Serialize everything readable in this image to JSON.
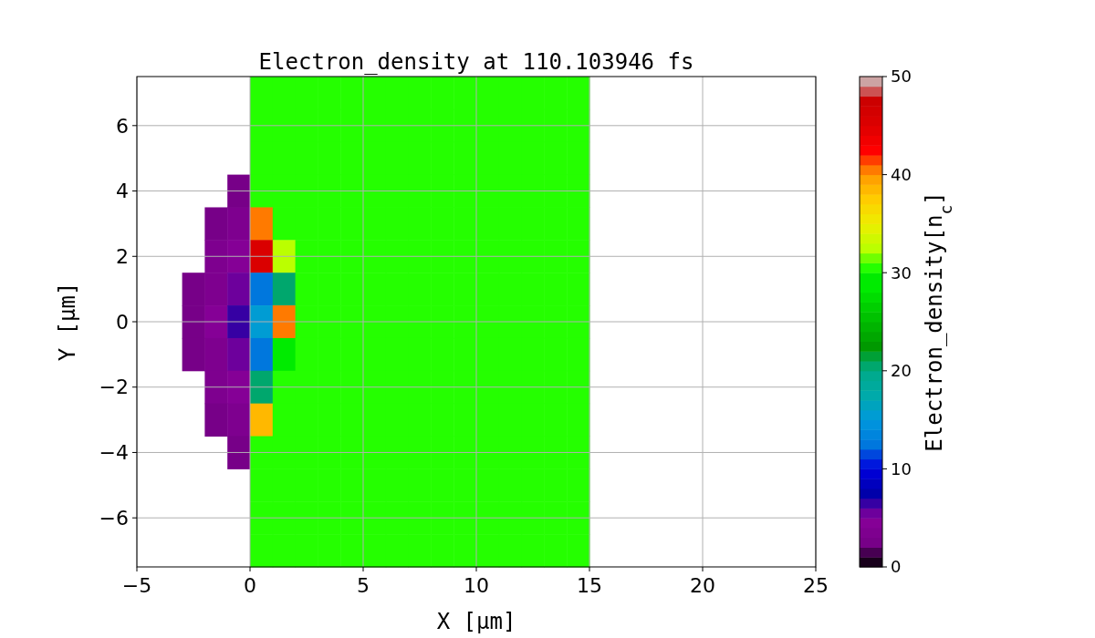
{
  "chart_data": {
    "type": "scatter",
    "title": "Electron_density at 110.103946 fs",
    "xlabel": "X [μm]",
    "ylabel": "Y [μm]",
    "clabel": "Electron_density[n$_{c}$]",
    "marker": "square",
    "series": [
      {
        "x": [
          0.5,
          1.5,
          2.5,
          3.5,
          4.5,
          5.5,
          6.5,
          7.5,
          8.5,
          9.5,
          10.5,
          11.5,
          12.5,
          13.5,
          14.5,
          0.5,
          1.5,
          2.5,
          3.5,
          4.5,
          5.5,
          6.5,
          7.5,
          8.5,
          9.5,
          10.5,
          11.5,
          12.5,
          13.5,
          14.5,
          0.5,
          1.5,
          2.5,
          3.5,
          4.5,
          5.5,
          6.5,
          7.5,
          8.5,
          9.5,
          10.5,
          11.5,
          12.5,
          13.5,
          14.5,
          -0.5,
          0.5,
          1.5,
          2.5,
          3.5,
          4.5,
          5.5,
          6.5,
          7.5,
          8.5,
          9.5,
          10.5,
          11.5,
          12.5,
          13.5,
          14.5,
          -1.5,
          -0.5,
          0.5,
          1.5,
          2.5,
          3.5,
          4.5,
          5.5,
          6.5,
          7.5,
          8.5,
          9.5,
          10.5,
          11.5,
          12.5,
          13.5,
          14.5,
          -1.5,
          -0.5,
          0.5,
          1.5,
          2.5,
          3.5,
          4.5,
          5.5,
          6.5,
          7.5,
          8.5,
          9.5,
          10.5,
          11.5,
          12.5,
          13.5,
          14.5,
          -2.5,
          -1.5,
          -0.5,
          0.5,
          1.5,
          2.5,
          3.5,
          4.5,
          5.5,
          6.5,
          7.5,
          8.5,
          9.5,
          10.5,
          11.5,
          12.5,
          13.5,
          14.5,
          -2.5,
          -1.5,
          -0.5,
          0.5,
          1.5,
          2.5,
          3.5,
          4.5,
          5.5,
          6.5,
          7.5,
          8.5,
          9.5,
          10.5,
          11.5,
          12.5,
          13.5,
          14.5,
          -2.5,
          -1.5,
          -0.5,
          0.5,
          1.5,
          2.5,
          3.5,
          4.5,
          5.5,
          6.5,
          7.5,
          8.5,
          9.5,
          10.5,
          11.5,
          12.5,
          13.5,
          14.5,
          -1.5,
          -0.5,
          0.5,
          1.5,
          2.5,
          3.5,
          4.5,
          5.5,
          6.5,
          7.5,
          8.5,
          9.5,
          10.5,
          11.5,
          12.5,
          13.5,
          14.5,
          -1.5,
          -0.5,
          0.5,
          1.5,
          2.5,
          3.5,
          4.5,
          5.5,
          6.5,
          7.5,
          8.5,
          9.5,
          10.5,
          11.5,
          12.5,
          13.5,
          14.5,
          -0.5,
          0.5,
          1.5,
          2.5,
          3.5,
          4.5,
          5.5,
          6.5,
          7.5,
          8.5,
          9.5,
          10.5,
          11.5,
          12.5,
          13.5,
          14.5,
          0.5,
          1.5,
          2.5,
          3.5,
          4.5,
          5.5,
          6.5,
          7.5,
          8.5,
          9.5,
          10.5,
          11.5,
          12.5,
          13.5,
          14.5,
          0.5,
          1.5,
          2.5,
          3.5,
          4.5,
          5.5,
          6.5,
          7.5,
          8.5,
          9.5,
          10.5,
          11.5,
          12.5,
          13.5,
          14.5,
          0.5,
          1.5,
          2.5,
          3.5,
          4.5,
          5.5,
          6.5,
          7.5,
          8.5,
          9.5,
          10.5,
          11.5,
          12.5,
          13.5,
          14.5
        ],
        "values": [
          7,
          7,
          7,
          7,
          7,
          7,
          7,
          7,
          7,
          7,
          7,
          7,
          7,
          7,
          7,
          6,
          6,
          6,
          6,
          6,
          6,
          6,
          6,
          6,
          6,
          6,
          6,
          6,
          6,
          6,
          5,
          5,
          5,
          5,
          5,
          5,
          5,
          5,
          5,
          5,
          5,
          5,
          5,
          5,
          5,
          4,
          4,
          4,
          4,
          4,
          4,
          4,
          4,
          4,
          4,
          4,
          4,
          4,
          4,
          4,
          4,
          3,
          3,
          3,
          3,
          3,
          3,
          3,
          3,
          3,
          3,
          3,
          3,
          3,
          3,
          3,
          3,
          3,
          2,
          2,
          2,
          2,
          2,
          2,
          2,
          2,
          2,
          2,
          2,
          2,
          2,
          2,
          2,
          2,
          2,
          1,
          1,
          1,
          1,
          1,
          1,
          1,
          1,
          1,
          1,
          1,
          1,
          1,
          1,
          1,
          1,
          1,
          1,
          0,
          0,
          0,
          0,
          0,
          0,
          0,
          0,
          0,
          0,
          0,
          0,
          0,
          0,
          0,
          0,
          0,
          0,
          -1,
          -1,
          -1,
          -1,
          -1,
          -1,
          -1,
          -1,
          -1,
          -1,
          -1,
          -1,
          -1,
          -1,
          -1,
          -1,
          -1,
          -1,
          -2,
          -2,
          -2,
          -2,
          -2,
          -2,
          -2,
          -2,
          -2,
          -2,
          -2,
          -2,
          -2,
          -2,
          -2,
          -2,
          -2,
          -3,
          -3,
          -3,
          -3,
          -3,
          -3,
          -3,
          -3,
          -3,
          -3,
          -3,
          -3,
          -3,
          -3,
          -3,
          -3,
          -3,
          -4,
          -4,
          -4,
          -4,
          -4,
          -4,
          -4,
          -4,
          -4,
          -4,
          -4,
          -4,
          -4,
          -4,
          -4,
          -4,
          -5,
          -5,
          -5,
          -5,
          -5,
          -5,
          -5,
          -5,
          -5,
          -5,
          -5,
          -5,
          -5,
          -5,
          -5,
          -6,
          -6,
          -6,
          -6,
          -6,
          -6,
          -6,
          -6,
          -6,
          -6,
          -6,
          -6,
          -6,
          -6,
          -6,
          -7,
          -7,
          -7,
          -7,
          -7,
          -7,
          -7,
          -7,
          -7,
          -7,
          -7,
          -7,
          -7,
          -7,
          -7
        ],
        "cvalues": [
          30,
          30,
          30,
          30,
          30,
          30,
          30,
          30,
          30,
          30,
          30,
          30,
          30,
          30,
          30,
          30,
          30,
          30,
          30,
          30,
          30,
          30,
          30,
          30,
          30,
          30,
          30,
          30,
          30,
          30,
          30,
          30,
          30,
          30,
          30,
          30,
          30,
          30,
          30,
          30,
          30,
          30,
          30,
          30,
          30,
          2,
          30,
          30,
          30,
          30,
          30,
          30,
          30,
          30,
          30,
          30,
          30,
          30,
          30,
          30,
          30,
          2,
          3,
          40,
          30,
          30,
          30,
          30,
          30,
          30,
          30,
          30,
          30,
          30,
          30,
          30,
          30,
          30,
          3,
          4,
          45,
          32,
          30,
          30,
          30,
          30,
          30,
          30,
          30,
          30,
          30,
          30,
          30,
          30,
          30,
          2,
          3,
          5,
          12,
          20,
          30,
          30,
          30,
          30,
          30,
          30,
          30,
          30,
          30,
          30,
          30,
          30,
          30,
          2,
          4,
          6,
          15,
          40,
          30,
          30,
          30,
          30,
          30,
          30,
          30,
          30,
          30,
          30,
          30,
          30,
          30,
          2,
          3,
          5,
          12,
          28,
          30,
          30,
          30,
          30,
          30,
          30,
          30,
          30,
          30,
          30,
          30,
          30,
          30,
          3,
          4,
          20,
          30,
          30,
          30,
          30,
          30,
          30,
          30,
          30,
          30,
          30,
          30,
          30,
          30,
          30,
          2,
          3,
          38,
          30,
          30,
          30,
          30,
          30,
          30,
          30,
          30,
          30,
          30,
          30,
          30,
          30,
          30,
          2,
          30,
          30,
          30,
          30,
          30,
          30,
          30,
          30,
          30,
          30,
          30,
          30,
          30,
          30,
          30,
          30,
          30,
          30,
          30,
          30,
          30,
          30,
          30,
          30,
          30,
          30,
          30,
          30,
          30,
          30,
          30,
          30,
          30,
          30,
          30,
          30,
          30,
          30,
          30,
          30,
          30,
          30,
          30,
          30,
          30,
          30,
          30,
          30,
          30,
          30,
          30,
          30,
          30,
          30,
          30,
          30,
          30,
          30,
          30,
          30
        ]
      }
    ],
    "xlim": [
      -5,
      25
    ],
    "xticks": [
      {
        "value": -5,
        "label": "−5"
      },
      0,
      5,
      10,
      15,
      20,
      25
    ],
    "ylim": [
      -7.5,
      7.5
    ],
    "yticks": [
      {
        "value": -6,
        "label": "−6"
      },
      {
        "value": -4,
        "label": "−4"
      },
      {
        "value": -2,
        "label": "−2"
      },
      0,
      2,
      4,
      6
    ],
    "clim": [
      0,
      50
    ],
    "cticks": [
      0,
      10,
      20,
      30,
      40,
      50
    ],
    "grid": true
  }
}
